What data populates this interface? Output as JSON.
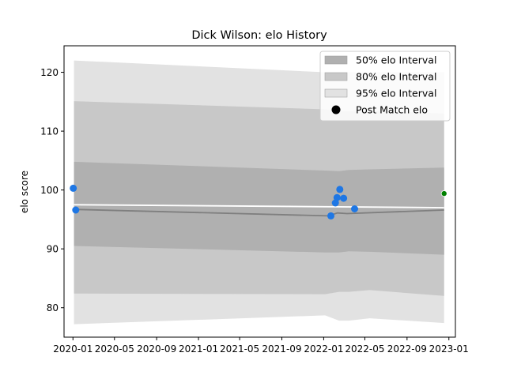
{
  "chart_data": {
    "type": "line",
    "title": "Dick Wilson: elo History",
    "xlabel": "",
    "ylabel": "elo score",
    "x_ticks": [
      "2020-01",
      "2020-05",
      "2020-09",
      "2021-01",
      "2021-05",
      "2021-09",
      "2022-01",
      "2022-05",
      "2022-09",
      "2023-01"
    ],
    "y_ticks": [
      80,
      90,
      100,
      110,
      120
    ],
    "ylim": [
      75,
      124.5
    ],
    "xlim": [
      "2019-12-06",
      "2023-01-20"
    ],
    "grid": false,
    "legend_position": "upper right",
    "legend": [
      {
        "label": "50% elo Interval",
        "swatch": "band",
        "color": "#b0b0b0"
      },
      {
        "label": "80% elo Interval",
        "swatch": "band",
        "color": "#c8c8c8"
      },
      {
        "label": "95% elo Interval",
        "swatch": "band",
        "color": "#e2e2e2"
      },
      {
        "label": "Post Match elo",
        "swatch": "dot",
        "color": "#000000"
      }
    ],
    "bands": {
      "x": [
        "2020-01-04",
        "2022-01-05",
        "2022-02-15",
        "2022-03-15",
        "2022-05-15",
        "2022-12-18"
      ],
      "p95_upper": [
        122.0,
        120.0,
        120.0,
        120.0,
        120.0,
        120.0
      ],
      "p95_lower": [
        77.2,
        78.7,
        77.8,
        77.8,
        78.2,
        77.4
      ],
      "p80_upper": [
        115.1,
        113.7,
        113.4,
        113.4,
        113.5,
        113.0
      ],
      "p80_lower": [
        82.4,
        82.3,
        82.7,
        82.7,
        83.0,
        82.0
      ],
      "p50_upper": [
        104.8,
        103.3,
        103.2,
        103.4,
        103.5,
        103.8
      ],
      "p50_lower": [
        90.5,
        89.4,
        89.4,
        89.6,
        89.5,
        89.0
      ],
      "colors": {
        "p95": "#e2e2e2",
        "p80": "#c8c8c8",
        "p50": "#b0b0b0"
      }
    },
    "series": [
      {
        "kind": "line",
        "color": "#7f7f7f",
        "x": [
          "2020-01-04",
          "2022-01-15",
          "2022-02-10",
          "2022-03-10",
          "2022-12-18"
        ],
        "y": [
          96.7,
          95.6,
          96.1,
          96.0,
          96.6
        ]
      },
      {
        "kind": "line",
        "color": "#ffffff",
        "x": [
          "2020-01-04",
          "2022-12-18"
        ],
        "y": [
          97.5,
          97.0
        ]
      },
      {
        "name": "Post Match elo",
        "kind": "scatter",
        "color": "#1f77e4",
        "x": [
          "2020-01-02",
          "2020-01-09",
          "2022-01-22",
          "2022-02-04",
          "2022-02-09",
          "2022-02-17",
          "2022-02-28",
          "2022-04-01"
        ],
        "y": [
          100.3,
          96.6,
          95.6,
          97.8,
          98.7,
          100.1,
          98.6,
          96.8
        ]
      },
      {
        "kind": "scatter",
        "color": "#008000",
        "x": [
          "2022-12-18"
        ],
        "y": [
          99.4
        ]
      }
    ]
  }
}
